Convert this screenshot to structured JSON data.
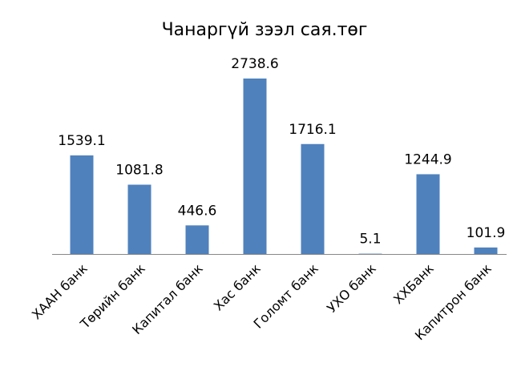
{
  "chart_data": {
    "type": "bar",
    "title": "Чанаргүй зээл сая.төг",
    "categories": [
      "ХААН банк",
      "Төрийн банк",
      "Капитал банк",
      "Хас банк",
      "Голомт банк",
      "УХО банк",
      "ХХБанк",
      "Капитрон банк"
    ],
    "values": [
      1539.1,
      1081.8,
      446.6,
      2738.6,
      1716.1,
      5.1,
      1244.9,
      101.9
    ],
    "color": "#4f81bd"
  }
}
